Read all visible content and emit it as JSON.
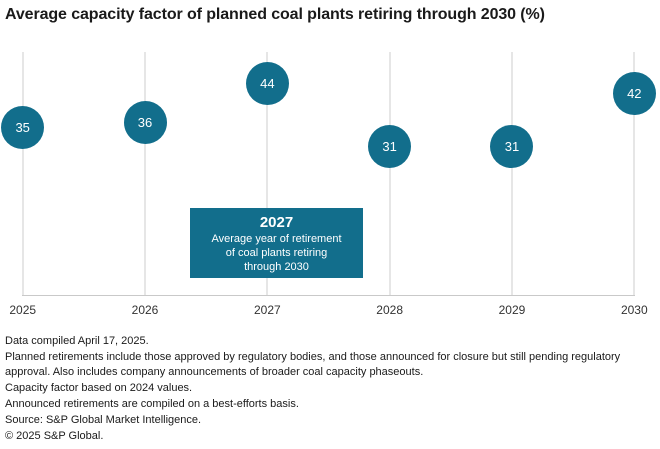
{
  "title": "Average capacity factor of planned coal plants retiring through 2030 (%)",
  "chart_data": {
    "type": "scatter",
    "subtype": "bubble-dot-plot",
    "title": "Average capacity factor of planned coal plants retiring through 2030 (%)",
    "categories": [
      "2025",
      "2026",
      "2027",
      "2028",
      "2029",
      "2030"
    ],
    "values": [
      35,
      36,
      44,
      31,
      31,
      42
    ],
    "xlabel": "",
    "ylabel": "",
    "ylim": [
      0,
      50
    ],
    "grid": "vertical-only",
    "legend": "none",
    "marker_color": "#126e8c",
    "annotation": {
      "year": "2027",
      "line1": "Average year of retirement",
      "line2": "of coal plants retiring",
      "line3": "through 2030"
    }
  },
  "annotation": {
    "year": "2027",
    "line1": "Average year of retirement",
    "line2": "of coal plants retiring",
    "line3": "through 2030"
  },
  "footer": {
    "lines": [
      "Data compiled April 17, 2025.",
      "Planned retirements include those approved by regulatory bodies, and those announced for closure but still pending regulatory approval. Also includes company announcements of broader coal capacity phaseouts.",
      "Capacity factor based on 2024 values.",
      "Announced retirements are compiled on a best-efforts basis.",
      "Source: S&P Global Market Intelligence.",
      "© 2025 S&P Global."
    ]
  },
  "colors": {
    "accent": "#126e8c",
    "gridline": "#e6e6e6",
    "axis": "#c9c9c9",
    "title_text": "#1a1a1a",
    "tick_text": "#333333",
    "bubble_text": "#ffffff"
  }
}
